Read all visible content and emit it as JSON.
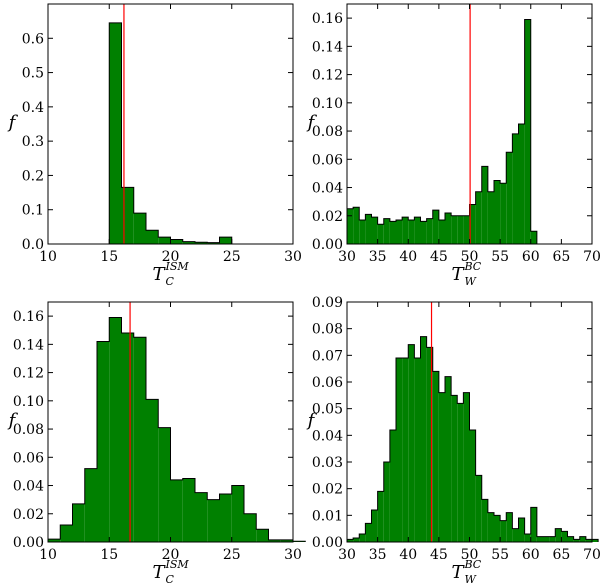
{
  "colors": {
    "bar_fill": "#008000",
    "bar_edge": "#000000",
    "ref_line": "#ff0000",
    "frame": "#000000"
  },
  "chart_data": [
    {
      "type": "bar",
      "panel": "top-left",
      "xlabel": {
        "main": "T",
        "sub": "C",
        "sup": "ISM"
      },
      "ylabel": "f",
      "xlim": [
        10,
        30
      ],
      "ylim": [
        0,
        0.7
      ],
      "xticks": [
        "10",
        "15",
        "20",
        "25",
        "30"
      ],
      "yticks": [
        "0.0",
        "0.1",
        "0.2",
        "0.3",
        "0.4",
        "0.5",
        "0.6"
      ],
      "xtick_values": [
        10,
        15,
        20,
        25,
        30
      ],
      "ytick_values": [
        0,
        0.1,
        0.2,
        0.3,
        0.4,
        0.5,
        0.6
      ],
      "bins": {
        "start": 15,
        "width": 1
      },
      "values": [
        0.645,
        0.165,
        0.09,
        0.04,
        0.02,
        0.013,
        0.007,
        0.005,
        0.004,
        0.02
      ],
      "ref_line": 16.2
    },
    {
      "type": "bar",
      "panel": "top-right",
      "xlabel": {
        "main": "T",
        "sub": "W",
        "sup": "BC"
      },
      "ylabel": "f",
      "xlim": [
        30,
        70
      ],
      "ylim": [
        0,
        0.17
      ],
      "xticks": [
        "30",
        "35",
        "40",
        "45",
        "50",
        "55",
        "60",
        "65",
        "70"
      ],
      "yticks": [
        "0.00",
        "0.02",
        "0.04",
        "0.06",
        "0.08",
        "0.10",
        "0.12",
        "0.14",
        "0.16"
      ],
      "xtick_values": [
        30,
        35,
        40,
        45,
        50,
        55,
        60,
        65,
        70
      ],
      "ytick_values": [
        0,
        0.02,
        0.04,
        0.06,
        0.08,
        0.1,
        0.12,
        0.14,
        0.16
      ],
      "bins": {
        "start": 30,
        "width": 1
      },
      "values": [
        0.025,
        0.026,
        0.017,
        0.021,
        0.019,
        0.014,
        0.018,
        0.016,
        0.017,
        0.019,
        0.017,
        0.019,
        0.016,
        0.018,
        0.024,
        0.017,
        0.022,
        0.02,
        0.02,
        0.02,
        0.028,
        0.037,
        0.055,
        0.037,
        0.045,
        0.043,
        0.065,
        0.078,
        0.085,
        0.159,
        0.009
      ],
      "ref_line": 50.1
    },
    {
      "type": "bar",
      "panel": "bottom-left",
      "xlabel": {
        "main": "T",
        "sub": "C",
        "sup": "ISM"
      },
      "ylabel": "f",
      "xlim": [
        10,
        30
      ],
      "ylim": [
        0,
        0.17
      ],
      "xticks": [
        "10",
        "15",
        "20",
        "25",
        "30"
      ],
      "yticks": [
        "0.00",
        "0.02",
        "0.04",
        "0.06",
        "0.08",
        "0.10",
        "0.12",
        "0.14",
        "0.16"
      ],
      "xtick_values": [
        10,
        15,
        20,
        25,
        30
      ],
      "ytick_values": [
        0,
        0.02,
        0.04,
        0.06,
        0.08,
        0.1,
        0.12,
        0.14,
        0.16
      ],
      "bins": {
        "start": 10,
        "width": 1
      },
      "values": [
        0.002,
        0.012,
        0.027,
        0.052,
        0.142,
        0.159,
        0.148,
        0.145,
        0.101,
        0.081,
        0.044,
        0.045,
        0.035,
        0.03,
        0.034,
        0.04,
        0.02,
        0.009,
        0.0015,
        0.0015,
        0.0005
      ],
      "ref_line": 16.7
    },
    {
      "type": "bar",
      "panel": "bottom-right",
      "xlabel": {
        "main": "T",
        "sub": "W",
        "sup": "BC"
      },
      "ylabel": "f",
      "xlim": [
        30,
        70
      ],
      "ylim": [
        0,
        0.09
      ],
      "xticks": [
        "30",
        "35",
        "40",
        "45",
        "50",
        "55",
        "60",
        "65",
        "70"
      ],
      "yticks": [
        "0.00",
        "0.01",
        "0.02",
        "0.03",
        "0.04",
        "0.05",
        "0.06",
        "0.07",
        "0.08",
        "0.09"
      ],
      "xtick_values": [
        30,
        35,
        40,
        45,
        50,
        55,
        60,
        65,
        70
      ],
      "ytick_values": [
        0,
        0.01,
        0.02,
        0.03,
        0.04,
        0.05,
        0.06,
        0.07,
        0.08,
        0.09
      ],
      "bins": {
        "start": 30,
        "width": 1
      },
      "values": [
        0.001,
        0.0015,
        0.003,
        0.007,
        0.012,
        0.019,
        0.03,
        0.042,
        0.069,
        0.069,
        0.074,
        0.069,
        0.077,
        0.073,
        0.064,
        0.056,
        0.062,
        0.055,
        0.052,
        0.056,
        0.042,
        0.025,
        0.016,
        0.011,
        0.01,
        0.008,
        0.011,
        0.005,
        0.009,
        0.003,
        0.013,
        0.002,
        0.002,
        0.002,
        0.005,
        0.004,
        0.002,
        0.001,
        0.002,
        0.001,
        0.001
      ],
      "ref_line": 43.8
    }
  ]
}
